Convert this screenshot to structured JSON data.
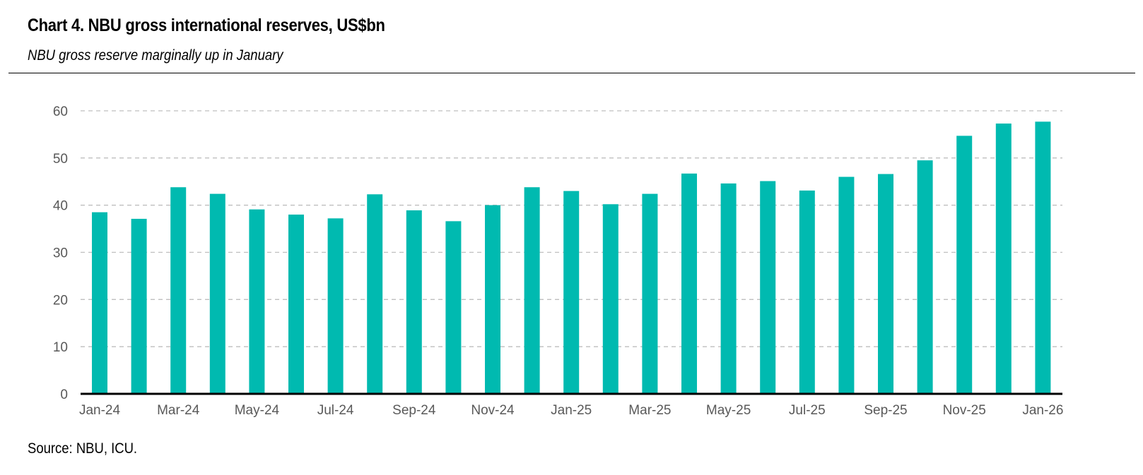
{
  "chart_data": {
    "type": "bar",
    "title": "Chart 4. NBU gross international reserves, US$bn",
    "subtitle": "NBU gross reserve marginally up in January",
    "source": "Source: NBU, ICU.",
    "xlabel": "",
    "ylabel": "",
    "ylim": [
      0,
      60
    ],
    "yticks": [
      0,
      10,
      20,
      30,
      40,
      50,
      60
    ],
    "grid": true,
    "legend": "none",
    "bar_color": "#00BAB0",
    "categories": [
      "Jan-24",
      "Feb-24",
      "Mar-24",
      "Apr-24",
      "May-24",
      "Jun-24",
      "Jul-24",
      "Aug-24",
      "Sep-24",
      "Oct-24",
      "Nov-24",
      "Dec-24",
      "Jan-25",
      "Feb-25",
      "Mar-25",
      "Apr-25",
      "May-25",
      "Jun-25",
      "Jul-25",
      "Aug-25",
      "Sep-25",
      "Oct-25",
      "Nov-25",
      "Dec-25",
      "Jan-26"
    ],
    "values": [
      38.5,
      37.1,
      43.8,
      42.4,
      39.1,
      38.0,
      37.2,
      42.3,
      38.9,
      36.6,
      40.0,
      43.8,
      43.0,
      40.2,
      42.4,
      46.7,
      44.6,
      45.1,
      43.1,
      46.0,
      46.6,
      49.5,
      54.7,
      57.3,
      57.7
    ],
    "xtick_labels": [
      "Jan-24",
      "Mar-24",
      "May-24",
      "Jul-24",
      "Sep-24",
      "Nov-24",
      "Jan-25",
      "Mar-25",
      "May-25",
      "Jul-25",
      "Sep-25",
      "Nov-25",
      "Jan-26"
    ]
  }
}
